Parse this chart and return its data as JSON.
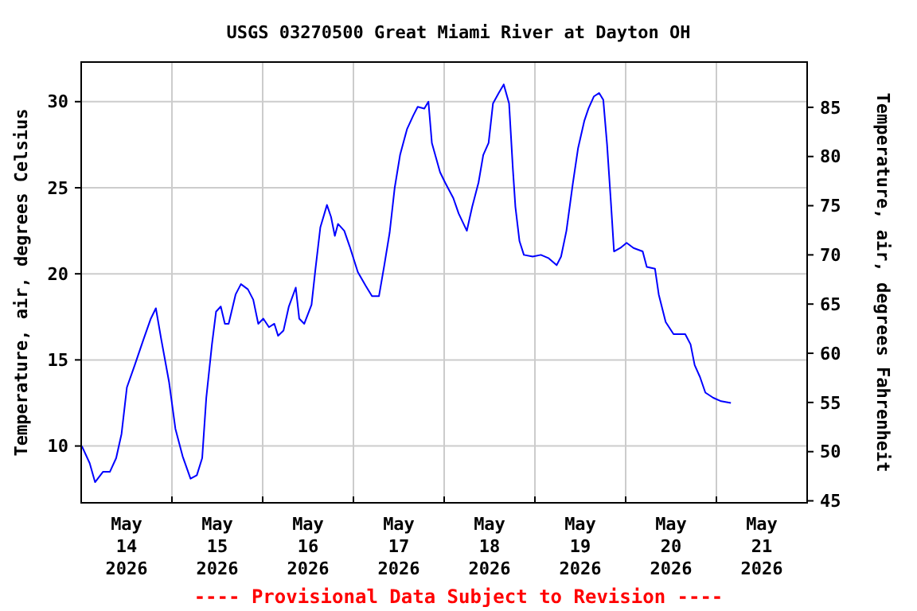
{
  "chart_data": {
    "type": "line",
    "title": "USGS 03270500 Great Miami River at Dayton OH",
    "ylabel": "Temperature, air, degrees Celsius",
    "y2label": "Temperature, air, degrees Fahrenheit",
    "annotations": [
      "---- Provisional Data Subject to Revision ----"
    ],
    "xlim": [
      "2026-05-14T00:00",
      "2026-05-22T00:00"
    ],
    "xticks": [
      {
        "value": "2026-05-14T12:00",
        "label": "May\n14\n2026"
      },
      {
        "value": "2026-05-15T00:00",
        "label": null
      },
      {
        "value": "2026-05-15T12:00",
        "label": "May\n15\n2026"
      },
      {
        "value": "2026-05-16T00:00",
        "label": null
      },
      {
        "value": "2026-05-16T12:00",
        "label": "May\n16\n2026"
      },
      {
        "value": "2026-05-17T00:00",
        "label": null
      },
      {
        "value": "2026-05-17T12:00",
        "label": "May\n17\n2026"
      },
      {
        "value": "2026-05-18T00:00",
        "label": null
      },
      {
        "value": "2026-05-18T12:00",
        "label": "May\n18\n2026"
      },
      {
        "value": "2026-05-19T00:00",
        "label": null
      },
      {
        "value": "2026-05-19T12:00",
        "label": "May\n19\n2026"
      },
      {
        "value": "2026-05-20T00:00",
        "label": null
      },
      {
        "value": "2026-05-20T12:00",
        "label": "May\n20\n2026"
      },
      {
        "value": "2026-05-21T00:00",
        "label": null
      },
      {
        "value": "2026-05-21T12:00",
        "label": "May\n21\n2026"
      }
    ],
    "ylim": [
      6.7,
      32.3
    ],
    "yticks": [
      10,
      15,
      20,
      25,
      30
    ],
    "y2lim": [
      44.8,
      89.6
    ],
    "y2ticks": [
      45,
      50,
      55,
      60,
      65,
      70,
      75,
      80,
      85
    ],
    "grid": true,
    "marker": "none",
    "line_style": "solid",
    "series": [
      {
        "color": "#0000ff",
        "x": [
          "2026-05-14T00:10",
          "2026-05-14T02:15",
          "2026-05-14T03:40",
          "2026-05-14T05:45",
          "2026-05-14T07:35",
          "2026-05-14T09:15",
          "2026-05-14T10:40",
          "2026-05-14T12:05",
          "2026-05-14T14:10",
          "2026-05-14T16:20",
          "2026-05-14T18:25",
          "2026-05-14T19:45",
          "2026-05-14T21:10",
          "2026-05-14T23:15",
          "2026-05-15T00:55",
          "2026-05-15T02:50",
          "2026-05-15T04:55",
          "2026-05-15T06:35",
          "2026-05-15T08:00",
          "2026-05-15T09:05",
          "2026-05-15T10:35",
          "2026-05-15T11:40",
          "2026-05-15T12:55",
          "2026-05-15T14:00",
          "2026-05-15T15:00",
          "2026-05-15T16:50",
          "2026-05-15T18:15",
          "2026-05-15T20:05",
          "2026-05-15T21:30",
          "2026-05-15T22:50",
          "2026-05-16T00:10",
          "2026-05-16T01:40",
          "2026-05-16T03:05",
          "2026-05-16T04:05",
          "2026-05-16T05:30",
          "2026-05-16T06:55",
          "2026-05-16T08:45",
          "2026-05-16T09:40",
          "2026-05-16T11:00",
          "2026-05-16T12:55",
          "2026-05-16T13:55",
          "2026-05-16T15:15",
          "2026-05-16T17:00",
          "2026-05-16T18:05",
          "2026-05-16T19:05",
          "2026-05-16T19:55",
          "2026-05-16T21:35",
          "2026-05-16T23:00",
          "2026-05-17T01:10",
          "2026-05-17T03:15",
          "2026-05-17T04:55",
          "2026-05-17T06:45",
          "2026-05-17T08:10",
          "2026-05-17T09:35",
          "2026-05-17T10:55",
          "2026-05-17T12:20",
          "2026-05-17T14:10",
          "2026-05-17T15:50",
          "2026-05-17T17:00",
          "2026-05-17T18:45",
          "2026-05-17T19:50",
          "2026-05-17T20:45",
          "2026-05-17T22:55",
          "2026-05-18T00:15",
          "2026-05-18T02:25",
          "2026-05-18T03:50",
          "2026-05-18T06:00",
          "2026-05-18T07:25",
          "2026-05-18T09:05",
          "2026-05-18T10:20",
          "2026-05-18T11:45",
          "2026-05-18T12:55",
          "2026-05-18T14:25",
          "2026-05-18T15:45",
          "2026-05-18T17:10",
          "2026-05-18T18:10",
          "2026-05-18T18:50",
          "2026-05-18T19:55",
          "2026-05-18T21:05",
          "2026-05-18T23:25",
          "2026-05-19T01:35",
          "2026-05-19T03:40",
          "2026-05-19T05:45",
          "2026-05-19T06:55",
          "2026-05-19T08:20",
          "2026-05-19T10:00",
          "2026-05-19T11:25",
          "2026-05-19T13:05",
          "2026-05-19T14:10",
          "2026-05-19T15:35",
          "2026-05-19T17:00",
          "2026-05-19T18:05",
          "2026-05-19T19:05",
          "2026-05-19T20:05",
          "2026-05-19T20:55",
          "2026-05-19T22:35",
          "2026-05-20T00:15",
          "2026-05-20T02:05",
          "2026-05-20T04:30",
          "2026-05-20T05:35",
          "2026-05-20T07:45",
          "2026-05-20T08:45",
          "2026-05-20T10:35",
          "2026-05-20T12:40",
          "2026-05-20T15:45",
          "2026-05-20T17:10",
          "2026-05-20T18:15",
          "2026-05-20T19:40",
          "2026-05-20T21:05",
          "2026-05-20T23:10",
          "2026-05-21T01:15",
          "2026-05-21T03:50"
        ],
        "values": [
          10.0,
          9.0,
          7.9,
          8.5,
          8.5,
          9.3,
          10.7,
          13.4,
          14.7,
          16.1,
          17.4,
          18.0,
          16.2,
          13.7,
          11.0,
          9.4,
          8.1,
          8.3,
          9.3,
          12.8,
          15.9,
          17.8,
          18.1,
          17.1,
          17.1,
          18.8,
          19.4,
          19.1,
          18.5,
          17.1,
          17.4,
          16.9,
          17.1,
          16.4,
          16.7,
          18.1,
          19.2,
          17.4,
          17.1,
          18.2,
          20.2,
          22.7,
          24.0,
          23.3,
          22.2,
          22.9,
          22.5,
          21.6,
          20.1,
          19.3,
          18.7,
          18.7,
          20.5,
          22.4,
          25.0,
          26.9,
          28.4,
          29.2,
          29.7,
          29.6,
          30.0,
          27.6,
          25.9,
          25.3,
          24.4,
          23.5,
          22.5,
          23.9,
          25.3,
          26.9,
          27.6,
          29.9,
          30.5,
          31.0,
          29.9,
          26.1,
          23.9,
          21.9,
          21.1,
          21.0,
          21.1,
          20.9,
          20.5,
          21.0,
          22.5,
          25.2,
          27.3,
          28.9,
          29.6,
          30.3,
          30.5,
          30.1,
          27.5,
          24.2,
          21.3,
          21.5,
          21.8,
          21.5,
          21.3,
          20.4,
          20.3,
          18.8,
          17.2,
          16.5,
          16.5,
          15.9,
          14.7,
          14.0,
          13.1,
          12.8,
          12.6,
          12.5
        ]
      }
    ]
  }
}
